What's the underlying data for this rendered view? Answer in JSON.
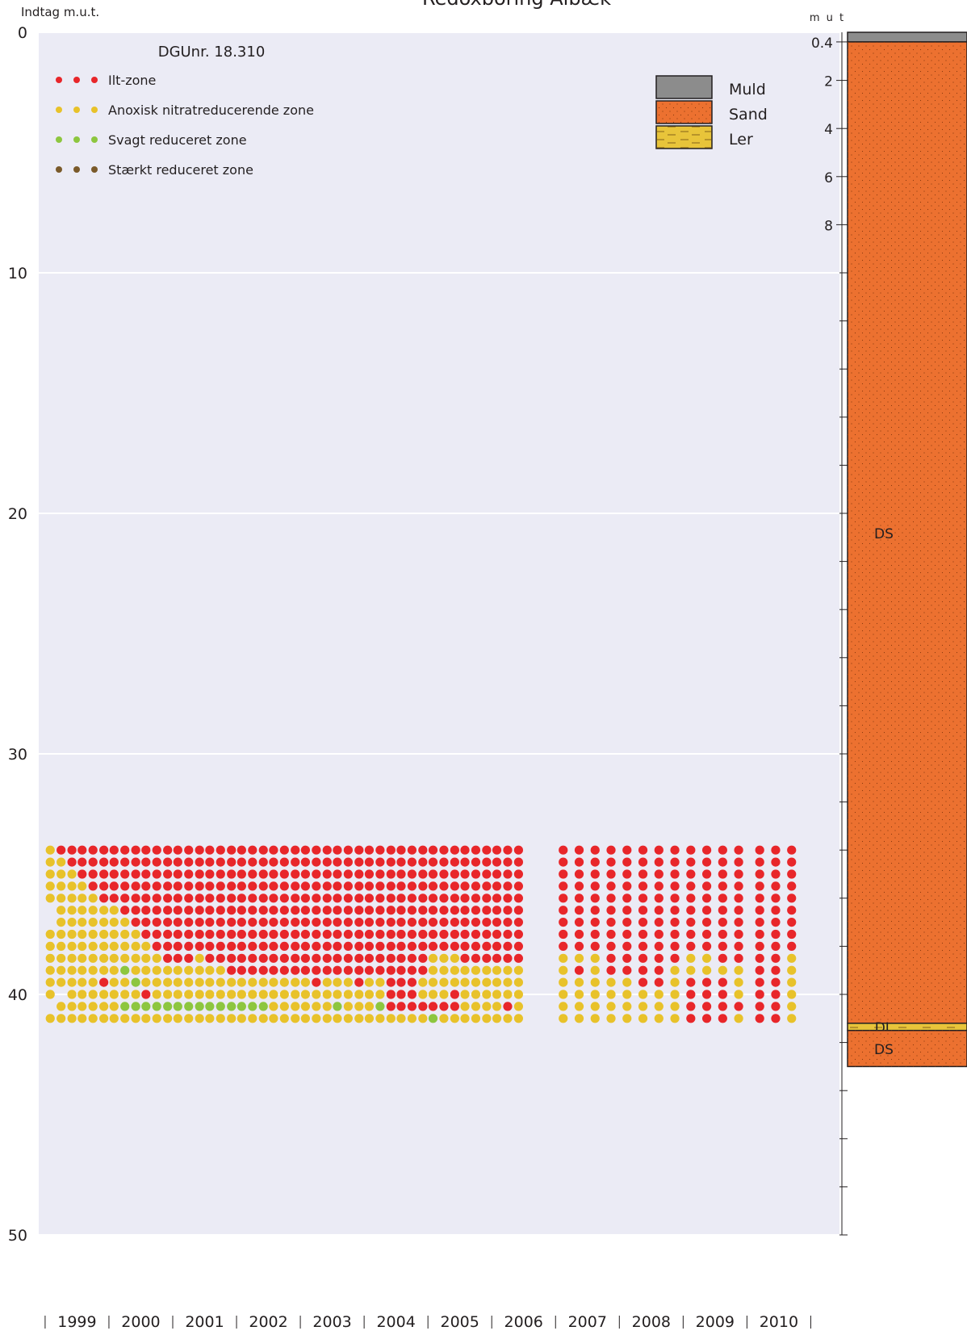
{
  "chart_data": {
    "type": "dot-matrix",
    "title": "Redoxboring Albæk",
    "y_label": "Indtag m.u.t.",
    "annotation": "DGUnr. 18.310",
    "ylim": [
      0,
      50
    ],
    "yticks": [
      0,
      10,
      20,
      30,
      40,
      50
    ],
    "grid": true,
    "xlim": [
      1998.9,
      2011.45
    ],
    "xticks": [
      {
        "value": 1999.5,
        "label": "1999"
      },
      {
        "value": 2000.5,
        "label": "2000"
      },
      {
        "value": 2001.5,
        "label": "2001"
      },
      {
        "value": 2002.5,
        "label": "2002"
      },
      {
        "value": 2003.5,
        "label": "2003"
      },
      {
        "value": 2004.5,
        "label": "2004"
      },
      {
        "value": 2005.5,
        "label": "2005"
      },
      {
        "value": 2006.5,
        "label": "2006"
      },
      {
        "value": 2007.5,
        "label": "2007"
      },
      {
        "value": 2008.5,
        "label": "2008"
      },
      {
        "value": 2009.5,
        "label": "2009"
      },
      {
        "value": 2010.5,
        "label": "2010"
      }
    ],
    "depths": [
      34,
      34.5,
      35,
      35.5,
      36,
      36.5,
      37,
      37.5,
      38,
      38.5,
      39,
      39.5,
      40,
      40.5,
      41
    ],
    "series": [
      {
        "name": "Ilt-zone",
        "color": "#e8262a"
      },
      {
        "name": "Anoxisk nitratreducerende zone",
        "color": "#e8c22a"
      },
      {
        "name": "Svagt reduceret zone",
        "color": "#8dc63f"
      },
      {
        "name": "Stærkt reduceret zone",
        "color": "#7a5a2a"
      }
    ],
    "samples": [
      {
        "x": 1999.08,
        "zones": "11111..111111.1"
      },
      {
        "x": 1999.25,
        "zones": "011111111111.11"
      },
      {
        "x": 1999.42,
        "zones": "001111111111111"
      },
      {
        "x": 1999.58,
        "zones": "000111111111111"
      },
      {
        "x": 1999.75,
        "zones": "000011111111111"
      },
      {
        "x": 1999.92,
        "zones": "000001111110111"
      },
      {
        "x": 2000.08,
        "zones": "000001111111111"
      },
      {
        "x": 2000.25,
        "zones": "000000111121121"
      },
      {
        "x": 2000.42,
        "zones": "000000011112121"
      },
      {
        "x": 2000.58,
        "zones": "000000001111021"
      },
      {
        "x": 2000.75,
        "zones": "000000000111121"
      },
      {
        "x": 2000.92,
        "zones": "000000000011121"
      },
      {
        "x": 2001.08,
        "zones": "000000000011121"
      },
      {
        "x": 2001.25,
        "zones": "000000000011121"
      },
      {
        "x": 2001.42,
        "zones": "000000000111121"
      },
      {
        "x": 2001.58,
        "zones": "000000000011121"
      },
      {
        "x": 2001.75,
        "zones": "000000000011121"
      },
      {
        "x": 2001.92,
        "zones": "000000000001121"
      },
      {
        "x": 2002.08,
        "zones": "000000000001121"
      },
      {
        "x": 2002.25,
        "zones": "000000000001121"
      },
      {
        "x": 2002.42,
        "zones": "000000000001121"
      },
      {
        "x": 2002.58,
        "zones": "000000000001111"
      },
      {
        "x": 2002.75,
        "zones": "000000000001111"
      },
      {
        "x": 2002.92,
        "zones": "000000000001111"
      },
      {
        "x": 2003.08,
        "zones": "000000000001111"
      },
      {
        "x": 2003.25,
        "zones": "000000000000111"
      },
      {
        "x": 2003.42,
        "zones": "000000000001111"
      },
      {
        "x": 2003.58,
        "zones": "000000000001121"
      },
      {
        "x": 2003.75,
        "zones": "000000000001111"
      },
      {
        "x": 2003.92,
        "zones": "000000000000111"
      },
      {
        "x": 2004.08,
        "zones": "000000000001111"
      },
      {
        "x": 2004.25,
        "zones": "000000000001121"
      },
      {
        "x": 2004.42,
        "zones": "000000000000001"
      },
      {
        "x": 2004.58,
        "zones": "000000000000001"
      },
      {
        "x": 2004.75,
        "zones": "000000000000001"
      },
      {
        "x": 2004.92,
        "zones": "000000000001101"
      },
      {
        "x": 2005.08,
        "zones": "000000000111102"
      },
      {
        "x": 2005.25,
        "zones": "000000000111101"
      },
      {
        "x": 2005.42,
        "zones": "000000000111001"
      },
      {
        "x": 2005.58,
        "zones": "000000000011111"
      },
      {
        "x": 2005.75,
        "zones": "000000000011111"
      },
      {
        "x": 2005.92,
        "zones": "000000000011111"
      },
      {
        "x": 2006.08,
        "zones": "000000000011111"
      },
      {
        "x": 2006.25,
        "zones": "000000000011101"
      },
      {
        "x": 2006.42,
        "zones": "000000000011111"
      },
      {
        "x": 2007.12,
        "zones": "000000000111111"
      },
      {
        "x": 2007.37,
        "zones": "000000000101111"
      },
      {
        "x": 2007.62,
        "zones": "000000000111111"
      },
      {
        "x": 2007.87,
        "zones": "000000000001111"
      },
      {
        "x": 2008.12,
        "zones": "000000000001111"
      },
      {
        "x": 2008.37,
        "zones": "000000000000111"
      },
      {
        "x": 2008.62,
        "zones": "000000000000111"
      },
      {
        "x": 2008.87,
        "zones": "000000000011111"
      },
      {
        "x": 2009.12,
        "zones": "000000000110000"
      },
      {
        "x": 2009.37,
        "zones": "000000000110000"
      },
      {
        "x": 2009.62,
        "zones": "000000000010000"
      },
      {
        "x": 2009.87,
        "zones": "000000000011101"
      },
      {
        "x": 2010.2,
        "zones": "000000000000000"
      },
      {
        "x": 2010.45,
        "zones": "000000000000000"
      },
      {
        "x": 2010.7,
        "zones": "000000000111111"
      }
    ]
  },
  "borehole": {
    "axis_label": "m u t",
    "ticks": [
      0.4,
      2,
      4,
      6,
      8
    ],
    "minor_ticks": [
      10,
      12,
      14,
      16,
      18,
      20,
      22,
      24,
      26,
      28,
      30,
      32,
      34,
      36,
      38,
      40,
      42,
      44,
      46,
      48,
      50
    ],
    "legend": [
      {
        "name": "Muld",
        "color": "#8c8c8c"
      },
      {
        "name": "Sand",
        "color": "#ec7130"
      },
      {
        "name": "Ler",
        "color": "#e8c43a"
      }
    ],
    "layers": [
      {
        "code": null,
        "soil": 0,
        "top": 0,
        "bottom": 0.4
      },
      {
        "code": "DS",
        "soil": 1,
        "top": 0.4,
        "bottom": 41.2
      },
      {
        "code": "DL",
        "soil": 2,
        "top": 41.2,
        "bottom": 41.5
      },
      {
        "code": "DS",
        "soil": 1,
        "top": 41.5,
        "bottom": 43
      }
    ]
  }
}
